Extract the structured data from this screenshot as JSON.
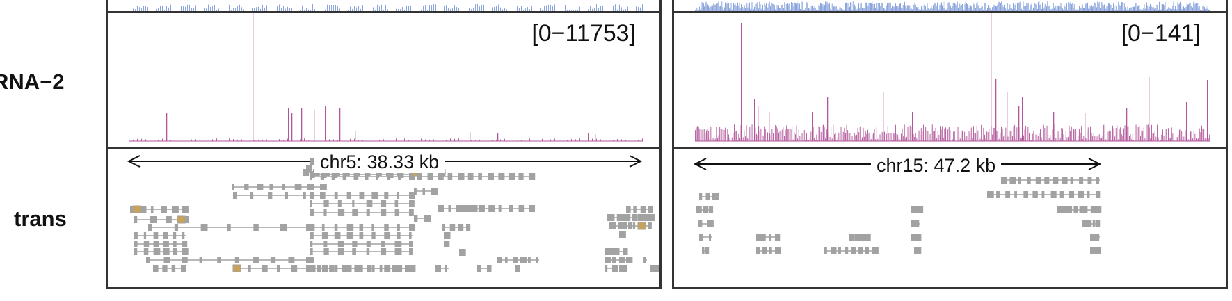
{
  "tracks": {
    "rna_label": "RNA−2",
    "trans_label": "trans"
  },
  "left": {
    "range": "[0−11753]",
    "region": "chr5: 38.33 kb"
  },
  "right": {
    "range": "[0−141]",
    "region": "chr15: 47.2 kb"
  },
  "colors": {
    "top_track": "#6f8fd6",
    "rna_track": "#b2559a",
    "gene": "#a2a2a2",
    "highlight": "#c9a25a",
    "border": "#333333"
  }
}
